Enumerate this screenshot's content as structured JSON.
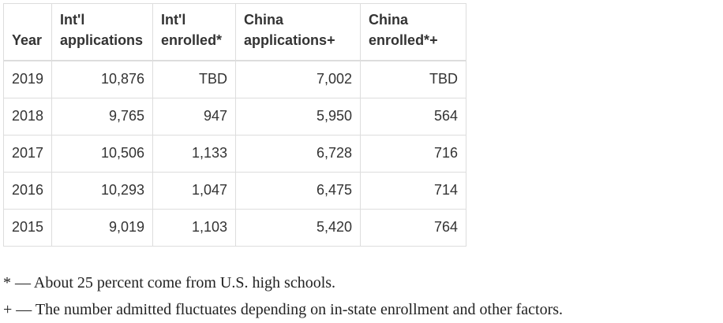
{
  "table": {
    "headers": [
      "Year",
      "Int'l applications",
      "Int'l enrolled*",
      "China applications+",
      "China enrolled*+"
    ],
    "rows": [
      [
        "2019",
        "10,876",
        "TBD",
        "7,002",
        "TBD"
      ],
      [
        "2018",
        "9,765",
        "947",
        "5,950",
        "564"
      ],
      [
        "2017",
        "10,506",
        "1,133",
        "6,728",
        "716"
      ],
      [
        "2016",
        "10,293",
        "1,047",
        "6,475",
        "714"
      ],
      [
        "2015",
        "9,019",
        "1,103",
        "5,420",
        "764"
      ]
    ]
  },
  "footnotes": [
    "* — About 25 percent come from U.S. high schools.",
    "+ — The number admitted fluctuates depending on in-state enrollment and other factors."
  ]
}
